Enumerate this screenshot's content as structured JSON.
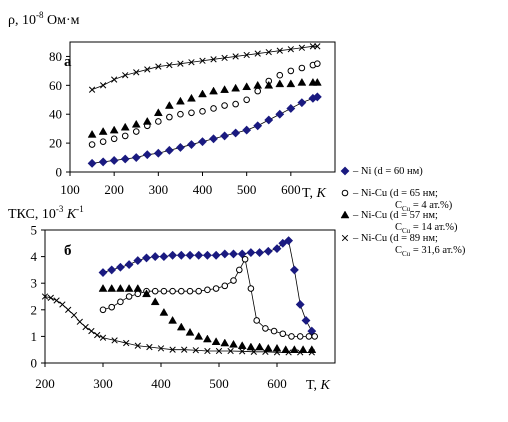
{
  "chart_data": [
    {
      "type": "scatter",
      "panel_label": "а",
      "ylabel": "ρ, 10",
      "ylabel_exp": "-8",
      "ylabel_unit": " Ом·м",
      "xlabel": "T, ",
      "xlabel_italic": "K",
      "xlim": [
        100,
        700
      ],
      "ylim": [
        0,
        90
      ],
      "xticks": [
        "100",
        "200",
        "300",
        "400",
        "500",
        "600"
      ],
      "xtick_values": [
        100,
        200,
        300,
        400,
        500,
        600
      ],
      "yticks": [
        "0",
        "20",
        "40",
        "60",
        "80"
      ],
      "ytick_values": [
        0,
        20,
        40,
        60,
        80
      ],
      "grid": false,
      "series": [
        {
          "marker": "diamond",
          "color": "#1a1a80",
          "line": true,
          "x": [
            150,
            175,
            200,
            225,
            250,
            275,
            300,
            325,
            350,
            375,
            400,
            425,
            450,
            475,
            500,
            525,
            550,
            575,
            600,
            625,
            650,
            660
          ],
          "y": [
            6,
            7,
            8,
            9,
            10,
            12,
            13,
            15,
            17,
            19,
            21,
            23,
            25,
            27,
            29,
            32,
            36,
            40,
            44,
            48,
            51,
            52
          ]
        },
        {
          "marker": "circle",
          "color": "#000000",
          "line": false,
          "x": [
            150,
            175,
            200,
            225,
            250,
            275,
            300,
            325,
            350,
            375,
            400,
            425,
            450,
            475,
            500,
            525,
            550,
            575,
            600,
            625,
            650,
            660
          ],
          "y": [
            19,
            21,
            23,
            25,
            28,
            32,
            35,
            38,
            40,
            41,
            42,
            44,
            46,
            47,
            50,
            56,
            63,
            67,
            70,
            72,
            74,
            75
          ]
        },
        {
          "marker": "triangle",
          "color": "#000000",
          "line": false,
          "x": [
            150,
            175,
            200,
            225,
            250,
            275,
            300,
            325,
            350,
            375,
            400,
            425,
            450,
            475,
            500,
            525,
            550,
            575,
            600,
            625,
            650,
            660
          ],
          "y": [
            26,
            28,
            29,
            31,
            33,
            35,
            41,
            46,
            49,
            51,
            54,
            56,
            57,
            58,
            59,
            60,
            60,
            61,
            61,
            62,
            62,
            62
          ]
        },
        {
          "marker": "cross",
          "color": "#000000",
          "line": true,
          "x": [
            150,
            175,
            200,
            225,
            250,
            275,
            300,
            325,
            350,
            375,
            400,
            425,
            450,
            475,
            500,
            525,
            550,
            575,
            600,
            625,
            650,
            660
          ],
          "y": [
            57,
            60,
            64,
            67,
            69,
            71,
            73,
            74,
            75,
            76,
            77,
            78,
            79,
            80,
            81,
            82,
            83,
            84,
            85,
            86,
            87,
            87
          ]
        }
      ]
    },
    {
      "type": "scatter",
      "panel_label": "б",
      "ylabel": "ТКС, 10",
      "ylabel_exp": "-3",
      "ylabel_unit": " K",
      "ylabel_unit_exp": "-1",
      "xlabel": "T, ",
      "xlabel_italic": "K",
      "xlim": [
        200,
        700
      ],
      "ylim": [
        0,
        5
      ],
      "xticks": [
        "200",
        "300",
        "400",
        "500",
        "600"
      ],
      "xtick_values": [
        200,
        300,
        400,
        500,
        600
      ],
      "yticks": [
        "0",
        "1",
        "2",
        "3",
        "4",
        "5"
      ],
      "ytick_values": [
        0,
        1,
        2,
        3,
        4,
        5
      ],
      "grid": false,
      "series": [
        {
          "marker": "diamond",
          "color": "#1a1a80",
          "line": true,
          "x": [
            300,
            315,
            330,
            345,
            360,
            375,
            390,
            405,
            420,
            435,
            450,
            465,
            480,
            495,
            510,
            525,
            540,
            555,
            570,
            585,
            600,
            610,
            620,
            630,
            640,
            650,
            660
          ],
          "y": [
            3.4,
            3.5,
            3.6,
            3.7,
            3.85,
            3.95,
            4.0,
            4.0,
            4.05,
            4.05,
            4.05,
            4.05,
            4.05,
            4.05,
            4.1,
            4.1,
            4.1,
            4.15,
            4.15,
            4.2,
            4.3,
            4.5,
            4.6,
            3.5,
            2.2,
            1.6,
            1.2
          ]
        },
        {
          "marker": "circle",
          "color": "#000000",
          "line": true,
          "x": [
            300,
            315,
            330,
            345,
            360,
            375,
            390,
            405,
            420,
            435,
            450,
            465,
            480,
            495,
            510,
            525,
            535,
            545,
            555,
            565,
            580,
            595,
            610,
            625,
            640,
            655,
            665
          ],
          "y": [
            2.0,
            2.1,
            2.3,
            2.5,
            2.6,
            2.7,
            2.7,
            2.7,
            2.7,
            2.7,
            2.7,
            2.7,
            2.75,
            2.8,
            2.9,
            3.1,
            3.5,
            3.9,
            2.8,
            1.6,
            1.3,
            1.2,
            1.1,
            1.0,
            1.0,
            1.0,
            1.0
          ]
        },
        {
          "marker": "triangle",
          "color": "#000000",
          "line": false,
          "x": [
            300,
            315,
            330,
            345,
            360,
            375,
            390,
            405,
            420,
            435,
            450,
            465,
            480,
            495,
            510,
            525,
            540,
            555,
            570,
            585,
            600,
            615,
            630,
            645,
            660
          ],
          "y": [
            2.8,
            2.8,
            2.8,
            2.8,
            2.8,
            2.6,
            2.3,
            1.9,
            1.6,
            1.35,
            1.15,
            1.0,
            0.9,
            0.8,
            0.75,
            0.7,
            0.65,
            0.6,
            0.6,
            0.55,
            0.55,
            0.5,
            0.5,
            0.5,
            0.5
          ]
        },
        {
          "marker": "cross",
          "color": "#000000",
          "line": true,
          "x": [
            200,
            210,
            220,
            230,
            240,
            250,
            260,
            270,
            280,
            290,
            300,
            320,
            340,
            360,
            380,
            400,
            420,
            440,
            460,
            480,
            500,
            520,
            540,
            560,
            580,
            600,
            620,
            640,
            660
          ],
          "y": [
            2.5,
            2.45,
            2.35,
            2.2,
            2.0,
            1.8,
            1.55,
            1.35,
            1.2,
            1.05,
            0.95,
            0.85,
            0.75,
            0.65,
            0.6,
            0.55,
            0.5,
            0.5,
            0.48,
            0.45,
            0.45,
            0.45,
            0.44,
            0.42,
            0.42,
            0.4,
            0.4,
            0.4,
            0.4
          ]
        }
      ]
    }
  ],
  "legend": {
    "placement": "right",
    "entries": [
      {
        "marker": "diamond",
        "color": "#1a1a80",
        "line1": "– Ni (d = 60 нм)",
        "line2": "",
        "sub_prefix": "",
        "sub": "",
        "line2_rest": ""
      },
      {
        "marker": "circle",
        "color": "#000000",
        "line1": "– Ni-Cu (d = 65 нм;",
        "line2": "",
        "sub_prefix": "C",
        "sub": "Cu",
        "line2_rest": " = 4 ат.%)"
      },
      {
        "marker": "triangle",
        "color": "#000000",
        "line1": "– Ni-Cu (d = 57 нм;",
        "line2": "",
        "sub_prefix": "C",
        "sub": "Cu",
        "line2_rest": " = 14 ат.%)"
      },
      {
        "marker": "cross",
        "color": "#000000",
        "line1": "– Ni-Cu (d = 89 нм;",
        "line2": "",
        "sub_prefix": "C",
        "sub": "Cu",
        "line2_rest": " = 31,6 ат.%)"
      }
    ]
  }
}
